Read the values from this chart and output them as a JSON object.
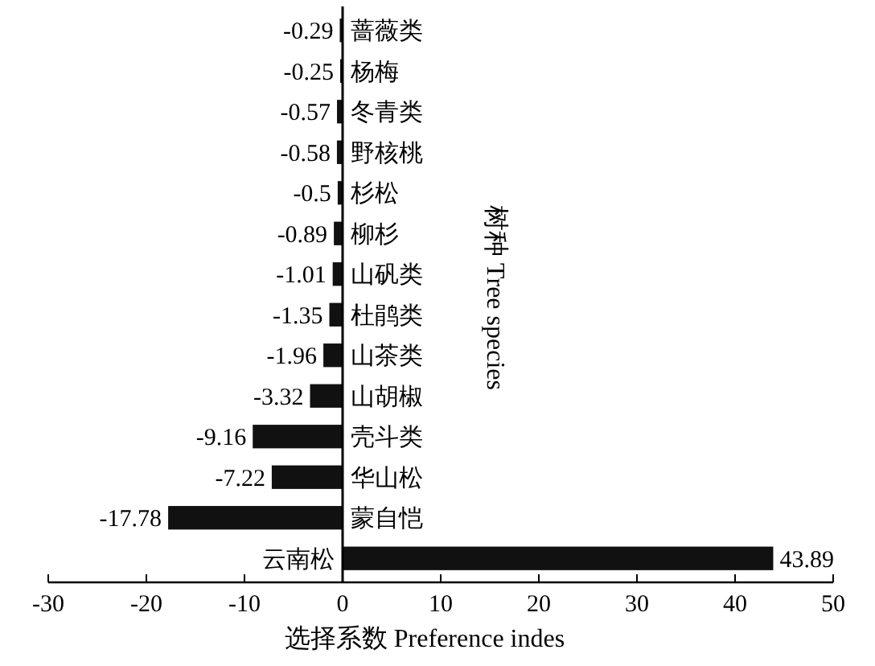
{
  "chart_data": {
    "type": "bar",
    "orientation": "horizontal",
    "xlabel": "选择系数 Preference indes",
    "ylabel": "树种 Tree species",
    "categories": [
      "蔷薇类",
      "杨梅",
      "冬青类",
      "野核桃",
      "杉松",
      "柳杉",
      "山矾类",
      "杜鹃类",
      "山茶类",
      "山胡椒",
      "壳斗类",
      "华山松",
      "蒙自恺",
      "云南松"
    ],
    "values": [
      -0.29,
      -0.25,
      -0.57,
      -0.58,
      -0.5,
      -0.89,
      -1.01,
      -1.35,
      -1.96,
      -3.32,
      -9.16,
      -7.22,
      -17.78,
      43.89
    ],
    "color": "#111111",
    "data_labels": true,
    "xlim": [
      -30,
      50
    ],
    "xticks": [
      -30,
      -20,
      -10,
      0,
      10,
      20,
      30,
      40,
      50
    ],
    "grid": false
  }
}
